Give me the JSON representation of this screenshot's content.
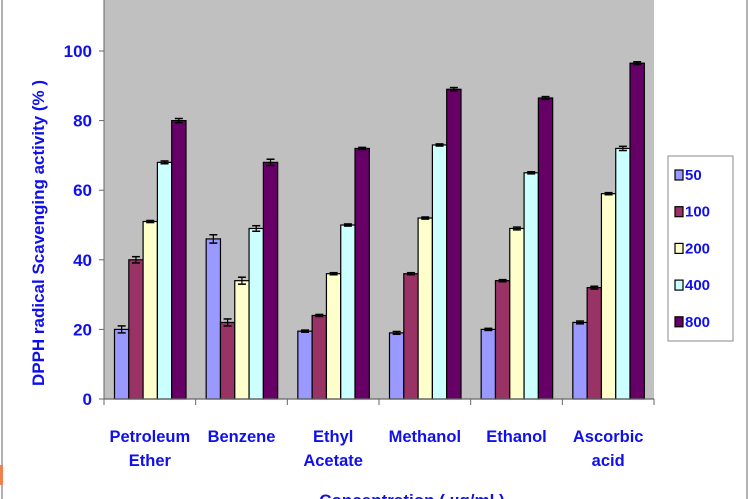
{
  "chart_data": {
    "type": "bar",
    "title": "",
    "xlabel": "Concentration ( µg/ml )",
    "ylabel": "DPPH radical Scavenging activity (% )",
    "ylim": [
      0,
      114
    ],
    "yticks": [
      0,
      20,
      40,
      60,
      80,
      100
    ],
    "grid": false,
    "legend_position": "right",
    "categories": [
      [
        "Petroleum",
        "Ether"
      ],
      [
        "Benzene"
      ],
      [
        "Ethyl",
        "Acetate"
      ],
      [
        "Methanol"
      ],
      [
        "Ethanol"
      ],
      [
        "Ascorbic",
        "acid"
      ]
    ],
    "series": [
      {
        "name": "50",
        "color": "#9999ff",
        "values": [
          20,
          46,
          19.5,
          19,
          20,
          22
        ],
        "errors": [
          1,
          1.2,
          0.3,
          0.4,
          0.3,
          0.4
        ]
      },
      {
        "name": "100",
        "color": "#993366",
        "values": [
          40,
          22,
          24,
          36,
          34,
          32
        ],
        "errors": [
          0.9,
          1,
          0.3,
          0.3,
          0.3,
          0.4
        ]
      },
      {
        "name": "200",
        "color": "#ffffcc",
        "values": [
          51,
          34,
          36,
          52,
          49,
          59
        ],
        "errors": [
          0.3,
          1,
          0.3,
          0.3,
          0.4,
          0.3
        ]
      },
      {
        "name": "400",
        "color": "#ccffff",
        "values": [
          68,
          49,
          50,
          73,
          65,
          72
        ],
        "errors": [
          0.4,
          0.8,
          0.3,
          0.3,
          0.3,
          0.6
        ]
      },
      {
        "name": "800",
        "color": "#660066",
        "values": [
          80,
          68,
          72,
          89,
          86.5,
          96.5
        ],
        "errors": [
          0.6,
          0.9,
          0.3,
          0.5,
          0.4,
          0.4
        ]
      }
    ],
    "plot_background": "#c0c0c0",
    "text_color": "#1010ee"
  }
}
